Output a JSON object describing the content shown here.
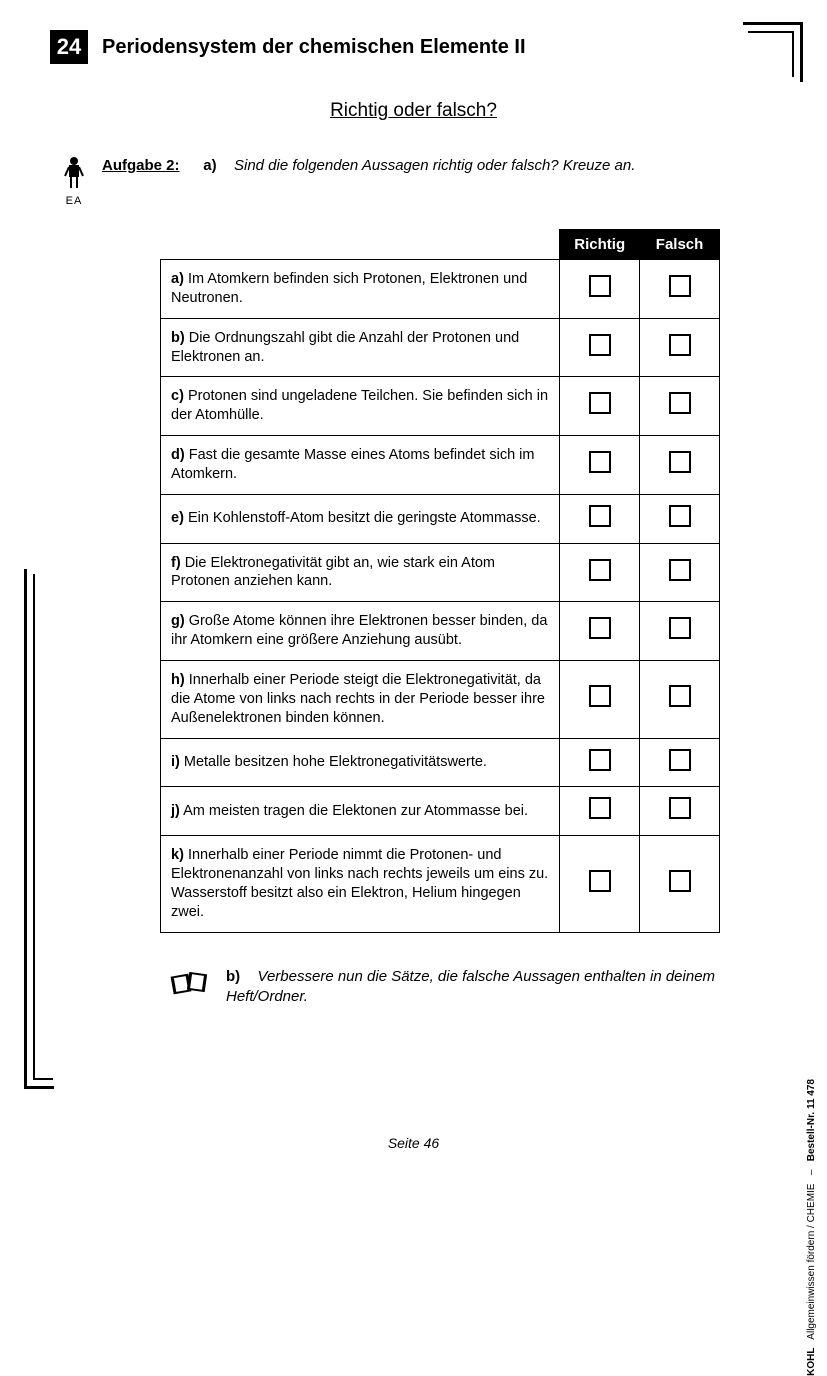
{
  "chapter_number": "24",
  "chapter_title": "Periodensystem der chemischen Elemente II",
  "subtitle": "Richtig oder falsch?",
  "ea_label": "EA",
  "task": {
    "label": "Aufgabe 2:",
    "part_a_letter": "a)",
    "part_a_text": "Sind die folgenden Aussagen richtig oder falsch? Kreuze an."
  },
  "table": {
    "header_richtig": "Richtig",
    "header_falsch": "Falsch",
    "rows": [
      {
        "letter": "a)",
        "text": "Im Atomkern befinden sich Protonen, Elektronen und Neutronen."
      },
      {
        "letter": "b)",
        "text": "Die Ordnungszahl gibt die Anzahl der Protonen und Elektronen an."
      },
      {
        "letter": "c)",
        "text": "Protonen sind ungeladene Teilchen. Sie befinden sich in der Atomhülle."
      },
      {
        "letter": "d)",
        "text": "Fast die gesamte Masse eines Atoms befindet sich im Atomkern."
      },
      {
        "letter": "e)",
        "text": "Ein Kohlenstoff-Atom besitzt die geringste Atommasse."
      },
      {
        "letter": "f)",
        "text": "Die Elektronegativität gibt an, wie stark ein Atom Protonen anziehen kann."
      },
      {
        "letter": "g)",
        "text": "Große Atome können ihre Elektronen besser binden, da ihr Atomkern eine größere Anziehung ausübt."
      },
      {
        "letter": "h)",
        "text": "Innerhalb einer Periode steigt die Elektronegativität, da die Atome von links nach rechts in der Periode besser ihre Außenelektronen binden können."
      },
      {
        "letter": "i)",
        "text": "Metalle besitzen hohe Elektronegativitätswerte."
      },
      {
        "letter": "j)",
        "text": "Am meisten tragen die Elektonen zur Atommasse bei."
      },
      {
        "letter": "k)",
        "text": "Innerhalb einer Periode nimmt die Protonen- und Elektronenanzahl von links nach rechts jeweils um eins zu. Wasserstoff besitzt also ein Elektron, Helium hingegen zwei."
      }
    ]
  },
  "part_b": {
    "letter": "b)",
    "text": "Verbessere nun die Sätze, die falsche Aussagen enthalten in deinem Heft/Ordner."
  },
  "footer": {
    "page_label": "Seite 46"
  },
  "side": {
    "publisher": "KOHL",
    "line": "Allgemeinwissen fördern / CHEMIE",
    "order": "Bestell-Nr. 11 478"
  },
  "style": {
    "checkbox_size": 22,
    "colors": {
      "black": "#000000",
      "white": "#ffffff"
    }
  }
}
